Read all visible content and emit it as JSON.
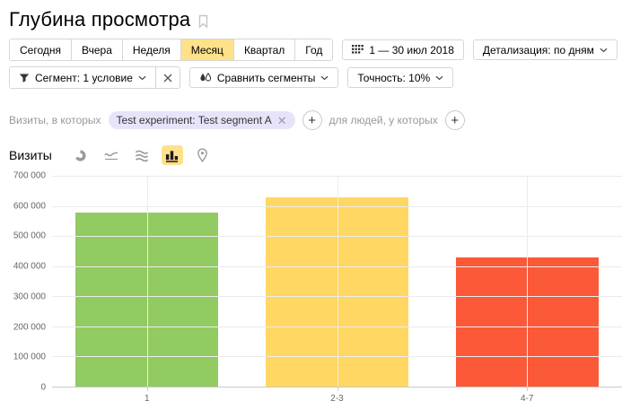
{
  "page": {
    "title": "Глубина просмотра"
  },
  "toolbar": {
    "period_tabs": [
      {
        "label": "Сегодня",
        "selected": false
      },
      {
        "label": "Вчера",
        "selected": false
      },
      {
        "label": "Неделя",
        "selected": false
      },
      {
        "label": "Месяц",
        "selected": true
      },
      {
        "label": "Квартал",
        "selected": false
      },
      {
        "label": "Год",
        "selected": false
      }
    ],
    "date_range": "1 — 30 июл 2018",
    "detalization_label": "Детализация: по дням"
  },
  "segment_bar": {
    "segment_label": "Сегмент: 1 условие",
    "compare_label": "Сравнить сегменты",
    "accuracy_label": "Точность: 10%"
  },
  "filters": {
    "visits_label": "Визиты, в которых",
    "segment_chip": "Test experiment: Test segment A",
    "people_label": "для людей, у которых"
  },
  "chart_header": {
    "metric_label": "Визиты",
    "chart_types": [
      {
        "icon": "pie-chart-icon",
        "selected": false
      },
      {
        "icon": "line-chart-icon",
        "selected": false
      },
      {
        "icon": "stacked-area-icon",
        "selected": false
      },
      {
        "icon": "bar-chart-icon",
        "selected": true
      },
      {
        "icon": "map-icon",
        "selected": false
      }
    ]
  },
  "chart_data": {
    "type": "bar",
    "title": "Глубина просмотра",
    "series_name": "Визиты",
    "categories": [
      "1",
      "2-3",
      "4-7"
    ],
    "values": [
      578000,
      628000,
      428000
    ],
    "bar_colors": [
      "#92cb61",
      "#ffd762",
      "#fc5938"
    ],
    "ylim": [
      0,
      700000
    ],
    "ytick_step": 100000,
    "ytick_labels": [
      "0",
      "100 000",
      "200 000",
      "300 000",
      "400 000",
      "500 000",
      "600 000",
      "700 000"
    ],
    "xlabel": "",
    "ylabel": "",
    "grid": true,
    "legend": "none"
  },
  "colors": {
    "selected_tab_bg": "#ffe18a",
    "chip_bg": "#e7e4fa",
    "grid_line": "#ebebeb",
    "axis_line": "#c9c9c9"
  }
}
